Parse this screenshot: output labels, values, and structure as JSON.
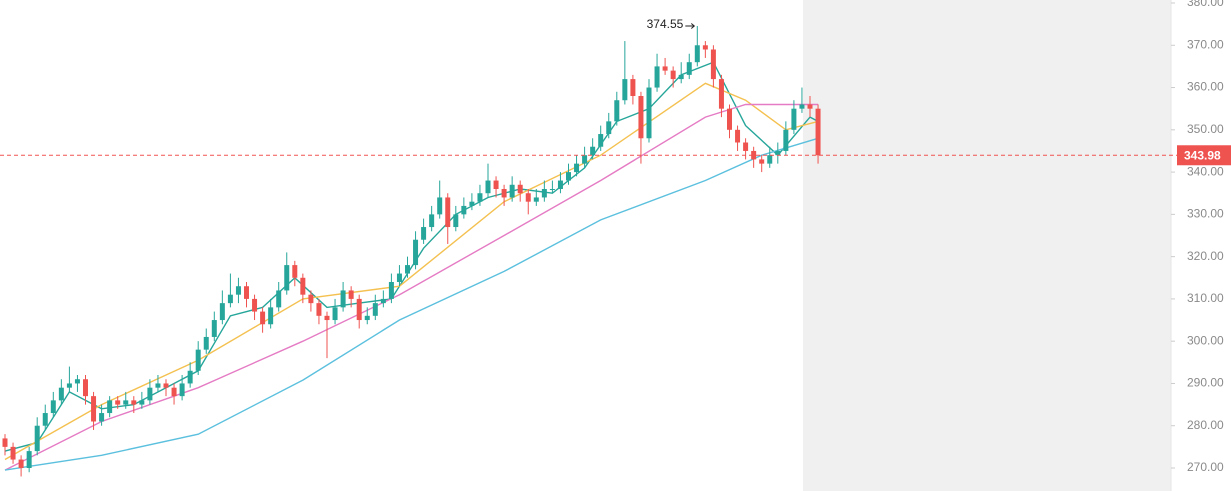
{
  "chart_data": {
    "type": "candlestick",
    "up_color": "#26a69a",
    "down_color": "#ef5350",
    "ylim": [
      270,
      380
    ],
    "yticks": [
      {
        "value": 270,
        "label": "270.00"
      },
      {
        "value": 280,
        "label": "280.00"
      },
      {
        "value": 290,
        "label": "290.00"
      },
      {
        "value": 300,
        "label": "300.00"
      },
      {
        "value": 310,
        "label": "310.00"
      },
      {
        "value": 320,
        "label": "320.00"
      },
      {
        "value": 330,
        "label": "330.00"
      },
      {
        "value": 340,
        "label": "340.00"
      },
      {
        "value": 350,
        "label": "350.00"
      },
      {
        "value": 360,
        "label": "360.00"
      },
      {
        "value": 370,
        "label": "370.00"
      },
      {
        "value": 380,
        "label": "380.00"
      }
    ],
    "high_marker": 86,
    "candles": [
      [
        277,
        278,
        273,
        275
      ],
      [
        275,
        276,
        271,
        272
      ],
      [
        272,
        273,
        268,
        270
      ],
      [
        270,
        275,
        269,
        274
      ],
      [
        274,
        282,
        273,
        280
      ],
      [
        280,
        285,
        279,
        283
      ],
      [
        283,
        288,
        282,
        286
      ],
      [
        286,
        291,
        285,
        289
      ],
      [
        289,
        294,
        288,
        290
      ],
      [
        290,
        292,
        288,
        291
      ],
      [
        291,
        292,
        285,
        287
      ],
      [
        287,
        288,
        279,
        281
      ],
      [
        281,
        285,
        280,
        283
      ],
      [
        283,
        287,
        282,
        286
      ],
      [
        286,
        287,
        284,
        285
      ],
      [
        285,
        288,
        284,
        286
      ],
      [
        286,
        287,
        283,
        285
      ],
      [
        285,
        288,
        284,
        286
      ],
      [
        286,
        291,
        285,
        289
      ],
      [
        289,
        292,
        288,
        290
      ],
      [
        290,
        291,
        287,
        289
      ],
      [
        289,
        290,
        285,
        287
      ],
      [
        287,
        292,
        286,
        290
      ],
      [
        290,
        295,
        289,
        293
      ],
      [
        293,
        300,
        292,
        298
      ],
      [
        298,
        303,
        297,
        301
      ],
      [
        301,
        307,
        300,
        305
      ],
      [
        305,
        312,
        304,
        309
      ],
      [
        309,
        316,
        308,
        311
      ],
      [
        311,
        315,
        309,
        313
      ],
      [
        313,
        314,
        308,
        310
      ],
      [
        310,
        311,
        305,
        307
      ],
      [
        307,
        308,
        302,
        304
      ],
      [
        304,
        310,
        303,
        308
      ],
      [
        308,
        314,
        307,
        312
      ],
      [
        312,
        321,
        311,
        318
      ],
      [
        318,
        319,
        313,
        315
      ],
      [
        315,
        316,
        309,
        311
      ],
      [
        311,
        312,
        307,
        309
      ],
      [
        309,
        310,
        304,
        306
      ],
      [
        306,
        307,
        296,
        305
      ],
      [
        305,
        310,
        304,
        308
      ],
      [
        308,
        314,
        307,
        312
      ],
      [
        312,
        313,
        308,
        310
      ],
      [
        310,
        311,
        303,
        305
      ],
      [
        305,
        308,
        304,
        306
      ],
      [
        306,
        311,
        305,
        309
      ],
      [
        309,
        312,
        308,
        310
      ],
      [
        310,
        316,
        309,
        314
      ],
      [
        314,
        318,
        313,
        316
      ],
      [
        316,
        320,
        315,
        318
      ],
      [
        318,
        326,
        317,
        324
      ],
      [
        324,
        329,
        323,
        327
      ],
      [
        327,
        332,
        326,
        330
      ],
      [
        330,
        338,
        329,
        334
      ],
      [
        334,
        335,
        323,
        327
      ],
      [
        327,
        332,
        326,
        330
      ],
      [
        330,
        334,
        329,
        332
      ],
      [
        332,
        335,
        331,
        333
      ],
      [
        333,
        337,
        332,
        335
      ],
      [
        335,
        342,
        334,
        338
      ],
      [
        338,
        339,
        334,
        336
      ],
      [
        336,
        337,
        332,
        334
      ],
      [
        334,
        339,
        333,
        337
      ],
      [
        337,
        338,
        333,
        335
      ],
      [
        335,
        336,
        330,
        333
      ],
      [
        333,
        336,
        332,
        334
      ],
      [
        334,
        338,
        333,
        336
      ],
      [
        336,
        338,
        335,
        336
      ],
      [
        336,
        340,
        335,
        338
      ],
      [
        338,
        342,
        337,
        340
      ],
      [
        340,
        344,
        339,
        342
      ],
      [
        342,
        346,
        341,
        344
      ],
      [
        344,
        348,
        343,
        346
      ],
      [
        346,
        351,
        345,
        349
      ],
      [
        349,
        354,
        348,
        352
      ],
      [
        352,
        359,
        351,
        357
      ],
      [
        357,
        371,
        356,
        362
      ],
      [
        362,
        363,
        356,
        358
      ],
      [
        358,
        359,
        342,
        348
      ],
      [
        348,
        362,
        347,
        360
      ],
      [
        360,
        368,
        359,
        365
      ],
      [
        365,
        367,
        363,
        364
      ],
      [
        364,
        365,
        360,
        362
      ],
      [
        362,
        366,
        361,
        363
      ],
      [
        363,
        368,
        362,
        366
      ],
      [
        366,
        374.55,
        365,
        370
      ],
      [
        370,
        371,
        367,
        369
      ],
      [
        369,
        370,
        360,
        362
      ],
      [
        362,
        363,
        353,
        355
      ],
      [
        355,
        356,
        348,
        350
      ],
      [
        350,
        351,
        345,
        347
      ],
      [
        347,
        348,
        343,
        345
      ],
      [
        345,
        346,
        341,
        343
      ],
      [
        343,
        344,
        340,
        342
      ],
      [
        342,
        346,
        341,
        344
      ],
      [
        344,
        347,
        342,
        345
      ],
      [
        345,
        352,
        344,
        350
      ],
      [
        350,
        357,
        349,
        355
      ],
      [
        355,
        360,
        354,
        356
      ],
      [
        356,
        358,
        353,
        355
      ],
      [
        355,
        356,
        342,
        343.98
      ]
    ],
    "lines": [
      {
        "color": "#26a69a",
        "x": [
          0,
          4,
          8,
          12,
          16,
          20,
          24,
          28,
          32,
          36,
          40,
          44,
          48,
          52,
          56,
          60,
          64,
          68,
          72,
          76,
          80,
          84,
          88,
          92,
          96,
          100,
          101
        ],
        "values": [
          274,
          276,
          288,
          284,
          285,
          289,
          293,
          306,
          308,
          315,
          308,
          309,
          310,
          322,
          330,
          334,
          336,
          335,
          341,
          352,
          355,
          363,
          366,
          351,
          344,
          353,
          352
        ]
      },
      {
        "color": "#f4c150",
        "x": [
          0,
          12,
          24,
          37,
          49,
          62,
          74,
          87,
          92,
          97,
          101
        ],
        "values": [
          272,
          285,
          295.5,
          310,
          313,
          333,
          344,
          361,
          357,
          350,
          352
        ]
      },
      {
        "color": "#e57bc4",
        "x": [
          0,
          12,
          24,
          37,
          49,
          62,
          74,
          87,
          92,
          101
        ],
        "values": [
          269.5,
          281,
          289,
          300,
          311,
          325,
          338,
          353,
          356,
          356
        ]
      },
      {
        "color": "#5bc0de",
        "x": [
          0,
          12,
          24,
          37,
          49,
          62,
          74,
          87,
          94,
          101
        ],
        "values": [
          269.5,
          273,
          278,
          290.8,
          305,
          316.5,
          328.7,
          338,
          344,
          348
        ]
      }
    ]
  }
}
